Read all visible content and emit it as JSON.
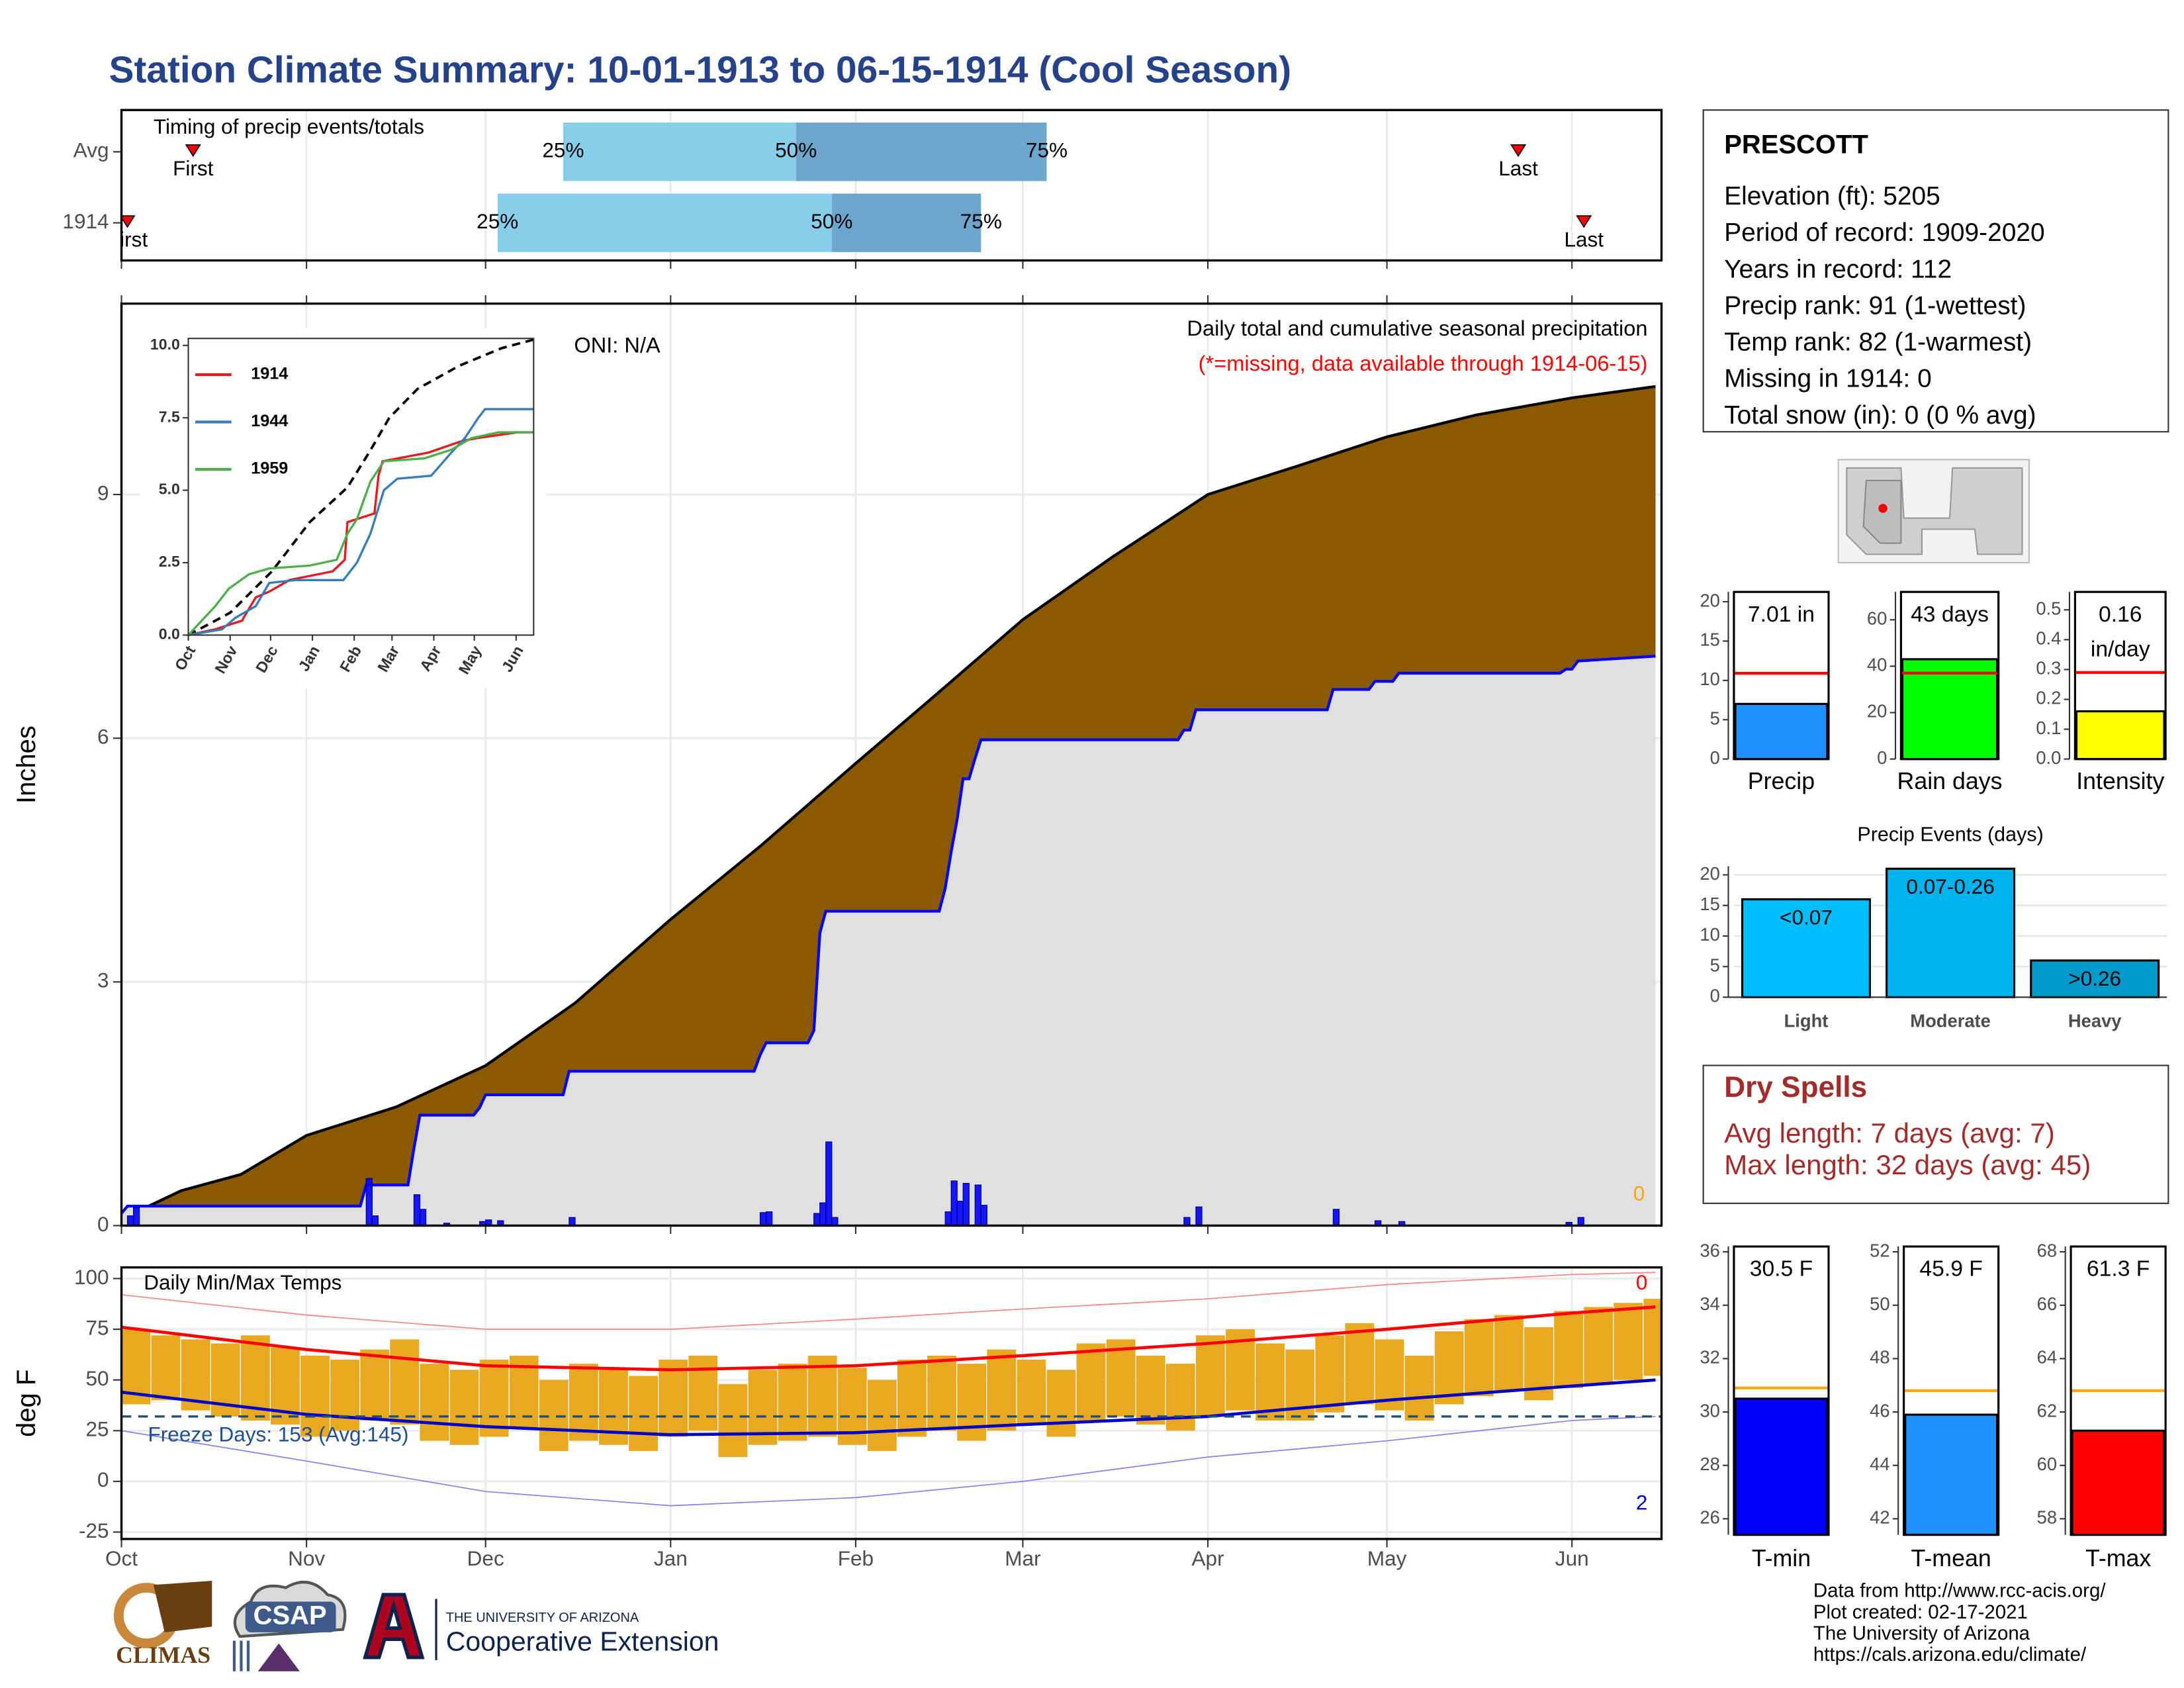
{
  "title": "Station Climate Summary: 10-01-1913 to 06-15-1914 (Cool Season)",
  "chart_data": [
    {
      "type": "timing",
      "title": "Timing of precip events/totals",
      "xlim": [
        0,
        258
      ],
      "xticks": [
        0,
        31,
        61,
        92,
        123,
        151,
        182,
        212,
        243
      ],
      "marker_labels": {
        "first": "First",
        "p25": "25%",
        "p50": "50%",
        "p75": "75%",
        "last": "Last"
      },
      "rows": [
        {
          "name": "Avg",
          "first": 12,
          "p25": 74,
          "p50": 113,
          "p75": 155,
          "last": 234
        },
        {
          "name": "1914",
          "first": 1,
          "p25": 63,
          "p50": 119,
          "p75": 144,
          "last": 245
        }
      ],
      "colors": {
        "early": "#87ceeb",
        "late": "#6ca6cd",
        "marker": "#ff0000"
      }
    },
    {
      "type": "area",
      "title": "Daily total and cumulative seasonal precipitation",
      "subtitle": "(*=missing, data available through 1914-06-15)",
      "annotation": "ONI: N/A",
      "ylabel": "Inches",
      "missing_days": 0,
      "xlim": [
        0,
        258
      ],
      "xticks": [
        0,
        31,
        61,
        92,
        123,
        151,
        182,
        212,
        243
      ],
      "ylim": [
        0,
        11.35
      ],
      "yticks": [
        0,
        3,
        6,
        9
      ],
      "grid": true,
      "average": {
        "color": "#8b5a00",
        "line_color": "#000000",
        "x": [
          0,
          10,
          20,
          31,
          46,
          61,
          76,
          92,
          107,
          123,
          137,
          151,
          166,
          182,
          197,
          212,
          227,
          243,
          257
        ],
        "values": [
          0.08,
          0.43,
          0.63,
          1.11,
          1.46,
          1.97,
          2.74,
          3.77,
          4.67,
          5.69,
          6.57,
          7.46,
          8.23,
          9.0,
          9.35,
          9.71,
          9.98,
          10.19,
          10.33
        ]
      },
      "season": {
        "color": "#0000ff",
        "fill": "#e0e0e0",
        "x": [
          0,
          1,
          40,
          41,
          48,
          49,
          50,
          59,
          60,
          61,
          74,
          75,
          106,
          107,
          108,
          115,
          116,
          117,
          118,
          137,
          138,
          139,
          140,
          141,
          142,
          143,
          144,
          177,
          178,
          179,
          180,
          202,
          203,
          209,
          210,
          213,
          214,
          241,
          242,
          243,
          244,
          257
        ],
        "values": [
          0.15,
          0.24,
          0.24,
          0.5,
          0.5,
          0.95,
          1.36,
          1.36,
          1.45,
          1.61,
          1.61,
          1.9,
          1.9,
          2.1,
          2.25,
          2.25,
          2.4,
          3.6,
          3.87,
          3.87,
          4.15,
          4.6,
          5.0,
          5.5,
          5.5,
          5.75,
          5.98,
          5.98,
          6.1,
          6.1,
          6.35,
          6.35,
          6.6,
          6.6,
          6.7,
          6.7,
          6.8,
          6.8,
          6.85,
          6.85,
          6.95,
          7.01
        ]
      },
      "daily": {
        "color": "#0000ff",
        "x": [
          1,
          2,
          41,
          42,
          49,
          50,
          54,
          60,
          61,
          63,
          75,
          107,
          108,
          116,
          117,
          118,
          119,
          138,
          139,
          140,
          141,
          143,
          144,
          178,
          180,
          203,
          210,
          214,
          242,
          244
        ],
        "values": [
          0.12,
          0.22,
          0.58,
          0.12,
          0.38,
          0.2,
          0.03,
          0.05,
          0.07,
          0.06,
          0.1,
          0.16,
          0.17,
          0.15,
          0.28,
          1.03,
          0.1,
          0.17,
          0.55,
          0.3,
          0.52,
          0.5,
          0.25,
          0.1,
          0.23,
          0.2,
          0.06,
          0.05,
          0.04,
          0.1
        ]
      }
    },
    {
      "type": "line",
      "xlim": [
        0,
        256
      ],
      "xticks": [
        {
          "value": 0,
          "label": "Oct"
        },
        {
          "value": 31,
          "label": "Nov"
        },
        {
          "value": 61,
          "label": "Dec"
        },
        {
          "value": 92,
          "label": "Jan"
        },
        {
          "value": 123,
          "label": "Feb"
        },
        {
          "value": 151,
          "label": "Mar"
        },
        {
          "value": 182,
          "label": "Apr"
        },
        {
          "value": 212,
          "label": "May"
        },
        {
          "value": 243,
          "label": "Jun"
        }
      ],
      "ylim": [
        0,
        10.24
      ],
      "yticks": [
        {
          "value": 0,
          "label": "0.0"
        },
        2.5,
        {
          "value": 5,
          "label": "5.0"
        },
        7.5,
        {
          "value": 10,
          "label": "10.0"
        }
      ],
      "series": [
        {
          "name": "1914",
          "color": "#e41a1c",
          "x": [
            0,
            20,
            40,
            41,
            50,
            60,
            75,
            107,
            116,
            118,
            138,
            141,
            144,
            178,
            203,
            214,
            244,
            256
          ],
          "values": [
            0,
            0.2,
            0.5,
            0.6,
            1.3,
            1.5,
            1.9,
            2.2,
            2.6,
            3.9,
            4.2,
            5.5,
            6.0,
            6.3,
            6.7,
            6.8,
            7.0,
            7.0
          ]
        },
        {
          "name": "1944",
          "color": "#377eb8",
          "x": [
            0,
            25,
            35,
            50,
            60,
            80,
            115,
            125,
            135,
            145,
            155,
            180,
            195,
            205,
            215,
            220,
            256
          ],
          "values": [
            0,
            0.2,
            0.6,
            1.0,
            1.8,
            1.9,
            1.9,
            2.5,
            3.5,
            5.0,
            5.4,
            5.5,
            6.3,
            6.8,
            7.5,
            7.8,
            7.8
          ]
        },
        {
          "name": "1959",
          "color": "#4daf4a",
          "x": [
            0,
            10,
            20,
            30,
            45,
            60,
            90,
            110,
            118,
            125,
            135,
            145,
            175,
            195,
            210,
            230,
            256
          ],
          "values": [
            0,
            0.5,
            1.0,
            1.6,
            2.1,
            2.3,
            2.4,
            2.6,
            3.5,
            4.0,
            5.3,
            6.0,
            6.1,
            6.4,
            6.8,
            7.0,
            7.0
          ]
        }
      ],
      "average": {
        "color": "#000000",
        "x": [
          0,
          31,
          62,
          90,
          118,
          134,
          149,
          170,
          201,
          232,
          256
        ],
        "values": [
          0,
          0.77,
          2.2,
          3.9,
          5.1,
          6.3,
          7.5,
          8.5,
          9.3,
          9.9,
          10.2
        ]
      }
    },
    {
      "type": "temperature",
      "title": "Daily Min/Max Temps",
      "ylabel": "deg F",
      "annotation": "Freeze Days: 153 (Avg:145)",
      "record_high_days": 0,
      "record_low_days": 2,
      "freeze_line": 32,
      "freeze_color": "#1f4e79",
      "xlim": [
        0,
        258
      ],
      "xticks": [
        {
          "value": 0,
          "label": "Oct"
        },
        {
          "value": 31,
          "label": "Nov"
        },
        {
          "value": 61,
          "label": "Dec"
        },
        {
          "value": 92,
          "label": "Jan"
        },
        {
          "value": 123,
          "label": "Feb"
        },
        {
          "value": 151,
          "label": "Mar"
        },
        {
          "value": 182,
          "label": "Apr"
        },
        {
          "value": 212,
          "label": "May"
        },
        {
          "value": 243,
          "label": "Jun"
        }
      ],
      "ylim": [
        -28.4,
        105.5
      ],
      "yticks": [
        -25,
        0,
        25,
        50,
        75,
        100
      ],
      "grid": true,
      "daily": {
        "color": "#e8a820",
        "x": [
          0,
          5,
          10,
          15,
          20,
          25,
          30,
          35,
          40,
          45,
          50,
          55,
          60,
          65,
          70,
          75,
          80,
          85,
          90,
          95,
          100,
          105,
          110,
          115,
          120,
          125,
          130,
          135,
          140,
          145,
          150,
          155,
          160,
          165,
          170,
          175,
          180,
          185,
          190,
          195,
          200,
          205,
          210,
          215,
          220,
          225,
          230,
          235,
          240,
          245,
          250,
          255
        ],
        "max": [
          75,
          72,
          70,
          68,
          72,
          66,
          62,
          60,
          65,
          70,
          58,
          55,
          60,
          62,
          50,
          58,
          55,
          52,
          60,
          62,
          48,
          55,
          58,
          62,
          56,
          50,
          60,
          62,
          58,
          65,
          60,
          55,
          68,
          70,
          62,
          58,
          72,
          75,
          68,
          65,
          72,
          78,
          70,
          62,
          74,
          80,
          82,
          76,
          84,
          86,
          88,
          90
        ],
        "min": [
          38,
          40,
          35,
          32,
          30,
          28,
          22,
          25,
          30,
          28,
          20,
          18,
          22,
          26,
          15,
          20,
          18,
          15,
          22,
          25,
          12,
          18,
          20,
          22,
          18,
          15,
          22,
          25,
          20,
          25,
          28,
          22,
          30,
          32,
          28,
          25,
          32,
          35,
          30,
          30,
          34,
          38,
          35,
          30,
          38,
          42,
          45,
          40,
          46,
          48,
          50,
          52
        ]
      },
      "normal_max": {
        "color": "#ff0000",
        "x": [
          0,
          31,
          61,
          92,
          123,
          151,
          182,
          212,
          243,
          257
        ],
        "values": [
          76,
          65,
          57,
          55,
          57,
          62,
          68,
          75,
          83,
          86
        ]
      },
      "normal_min": {
        "color": "#0000cd",
        "x": [
          0,
          31,
          61,
          92,
          123,
          151,
          182,
          212,
          243,
          257
        ],
        "values": [
          44,
          33,
          27,
          23,
          24,
          28,
          32,
          40,
          47,
          50
        ]
      },
      "record_max": {
        "color": "#ff8080",
        "x": [
          0,
          31,
          61,
          92,
          123,
          151,
          182,
          212,
          243,
          257
        ],
        "values": [
          92,
          82,
          75,
          75,
          80,
          85,
          90,
          97,
          102,
          103
        ]
      },
      "record_min": {
        "color": "#8080ff",
        "x": [
          0,
          31,
          61,
          92,
          123,
          151,
          182,
          212,
          243,
          257
        ],
        "values": [
          25,
          10,
          -5,
          -12,
          -8,
          0,
          12,
          20,
          30,
          32
        ]
      }
    },
    {
      "type": "bar",
      "categories": [
        "Precip"
      ],
      "values": [
        7.01
      ],
      "value_labels": [
        "7.01 in"
      ],
      "color": "#1e90ff",
      "average": 10.9,
      "average_color": "#ff0000",
      "ylim": [
        0,
        21.25
      ],
      "yticks": [
        0,
        5,
        10,
        15,
        20
      ]
    },
    {
      "type": "bar",
      "categories": [
        "Rain days"
      ],
      "values": [
        43
      ],
      "value_labels": [
        "43 days"
      ],
      "color": "#00ff00",
      "average": 37,
      "average_color": "#ff0000",
      "ylim": [
        0,
        72
      ],
      "yticks": [
        0,
        20,
        40,
        60
      ]
    },
    {
      "type": "bar",
      "categories": [
        "Intensity"
      ],
      "values": [
        0.16
      ],
      "value_labels": [
        "0.16"
      ],
      "unit_label": "in/day",
      "color": "#ffff00",
      "average": 0.29,
      "average_color": "#ff0000",
      "ylim": [
        0,
        0.56
      ],
      "yticks": [
        {
          "value": 0,
          "label": "0.0"
        },
        0.1,
        0.2,
        0.3,
        0.4,
        0.5
      ]
    },
    {
      "type": "bar",
      "title": "Precip Events (days)",
      "categories": [
        "Light",
        "Moderate",
        "Heavy"
      ],
      "values": [
        16,
        21,
        6
      ],
      "bar_labels": [
        "<0.07",
        "0.07-0.26",
        ">0.26"
      ],
      "colors": [
        "#00bfff",
        "#00b2ee",
        "#009acd"
      ],
      "ylim": [
        0,
        21.4
      ],
      "yticks": [
        0,
        5,
        10,
        15,
        20
      ],
      "grid": true
    },
    {
      "type": "bar",
      "categories": [
        "T-min"
      ],
      "values": [
        30.5
      ],
      "value_labels": [
        "30.5 F"
      ],
      "color": "#0000ff",
      "average": 30.9,
      "average_color": "#ffa500",
      "ylim": [
        25.4,
        36.2
      ],
      "yticks": [
        26,
        28,
        30,
        32,
        34,
        36
      ]
    },
    {
      "type": "bar",
      "categories": [
        "T-mean"
      ],
      "values": [
        45.9
      ],
      "value_labels": [
        "45.9 F"
      ],
      "color": "#1e90ff",
      "average": 46.8,
      "average_color": "#ffa500",
      "ylim": [
        41.4,
        52.2
      ],
      "yticks": [
        42,
        44,
        46,
        48,
        50,
        52
      ]
    },
    {
      "type": "bar",
      "categories": [
        "T-max"
      ],
      "values": [
        61.3
      ],
      "value_labels": [
        "61.3 F"
      ],
      "color": "#ff0000",
      "average": 62.8,
      "average_color": "#ffa500",
      "ylim": [
        57.4,
        68.2
      ],
      "yticks": [
        58,
        60,
        62,
        64,
        66,
        68
      ]
    }
  ],
  "station": {
    "name": "PRESCOTT",
    "lines": [
      "Elevation (ft): 5205",
      "Period of record: 1909-2020",
      "Years in record: 112",
      "Precip rank: 91 (1-wettest)",
      "Temp rank: 82 (1-warmest)",
      "Missing in 1914: 0",
      "Total snow (in): 0 (0 % avg)"
    ]
  },
  "dry_spells": {
    "title": "Dry Spells",
    "lines": [
      "Avg length: 7 days (avg: 7)",
      "Max length: 32 days (avg: 45)"
    ]
  },
  "footer": {
    "credits": [
      "Data from http://www.rcc-acis.org/",
      "Plot created: 02-17-2021",
      "The University of Arizona",
      "https://cals.arizona.edu/climate/"
    ],
    "logos": {
      "climas": "CLIMAS",
      "csap": "CSAP",
      "university": "THE UNIVERSITY OF ARIZONA",
      "extension": "Cooperative Extension"
    }
  }
}
